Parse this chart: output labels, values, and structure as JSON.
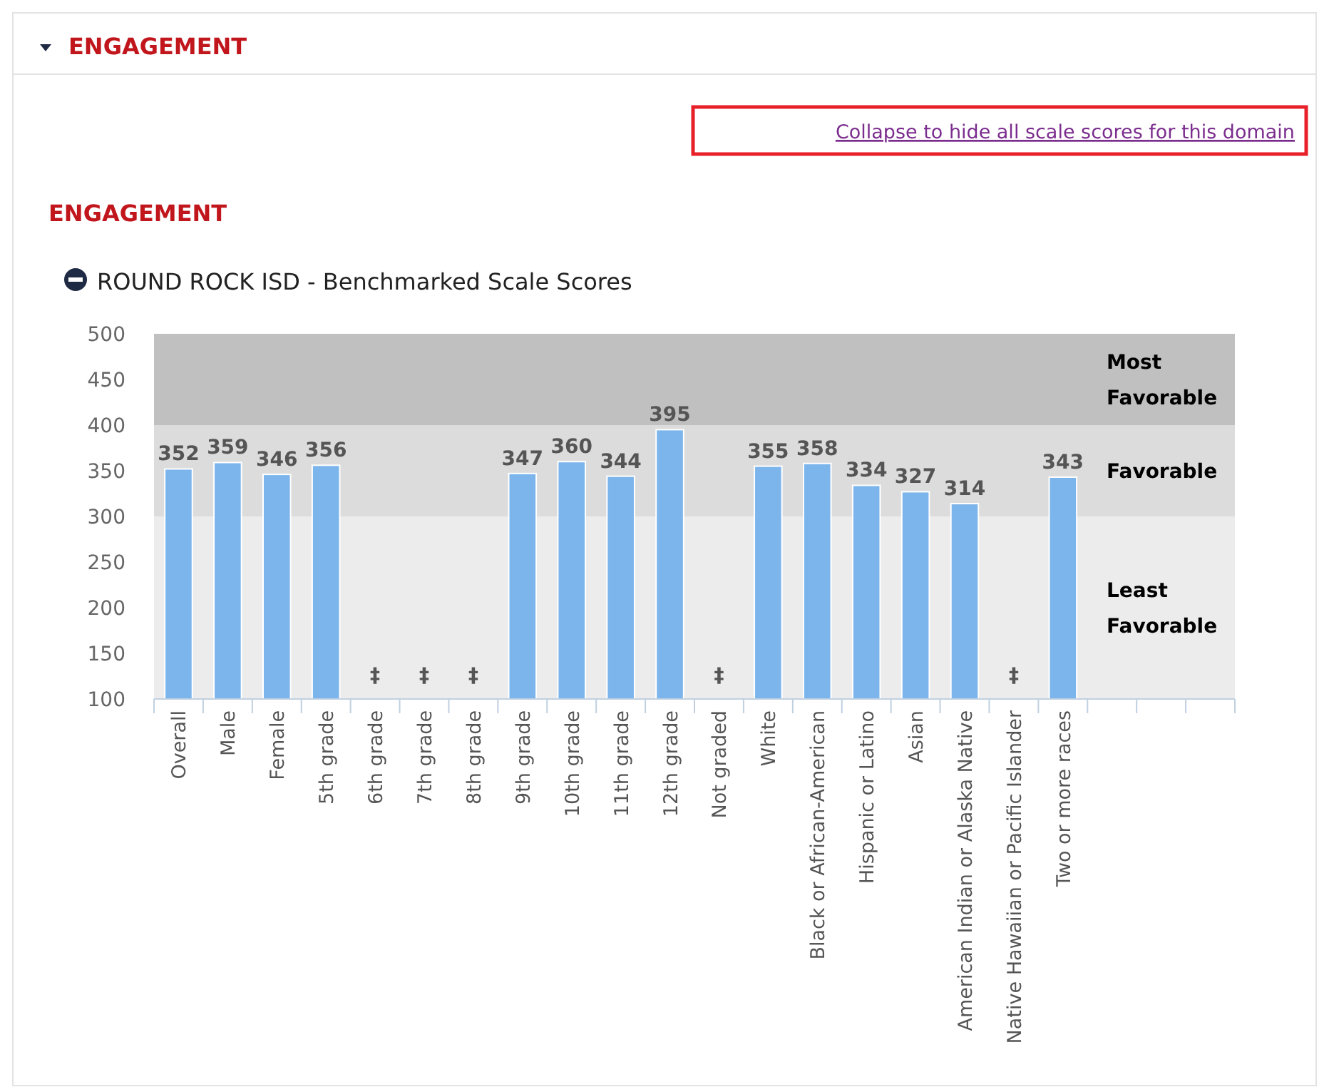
{
  "chart_data": {
    "type": "bar",
    "title": "ENGAGEMENT",
    "subtitle": "ROUND ROCK ISD - Benchmarked Scale Scores",
    "annotations": [
      "ENGAGEMENT",
      "Collapse to hide all scale scores for this domain"
    ],
    "categories": [
      "Overall",
      "Male",
      "Female",
      "5th grade",
      "6th grade",
      "7th grade",
      "8th grade",
      "9th grade",
      "10th grade",
      "11th grade",
      "12th grade",
      "Not graded",
      "White",
      "Black or African-American",
      "Hispanic or Latino",
      "Asian",
      "American Indian or Alaska Native",
      "Native Hawaiian or Pacific Islander",
      "Two or more races",
      null,
      null,
      null
    ],
    "values": [
      352,
      359,
      346,
      356,
      null,
      null,
      null,
      347,
      360,
      344,
      395,
      null,
      355,
      358,
      334,
      327,
      314,
      null,
      343,
      null,
      null,
      null
    ],
    "value_labels": [
      "352",
      "359",
      "346",
      "356",
      "‡",
      "‡",
      "‡",
      "347",
      "360",
      "344",
      "395",
      "‡",
      "355",
      "358",
      "334",
      "327",
      "314",
      "‡",
      "343",
      null,
      null,
      null
    ],
    "color": "#7cb5ec",
    "ylim": [
      100,
      500
    ],
    "yticks": [
      100,
      150,
      200,
      250,
      300,
      350,
      400,
      450,
      500
    ],
    "grid": false,
    "bands": [
      {
        "axis": "y",
        "from": 400,
        "to": 500,
        "label": "Most Favorable",
        "color": "#c0c0c0"
      },
      {
        "axis": "y",
        "from": 300,
        "to": 400,
        "label": "Favorable",
        "color": "#dcdcdc"
      },
      {
        "axis": "y",
        "from": 100,
        "to": 300,
        "label": "Least Favorable",
        "color": "#ececec"
      }
    ]
  }
}
